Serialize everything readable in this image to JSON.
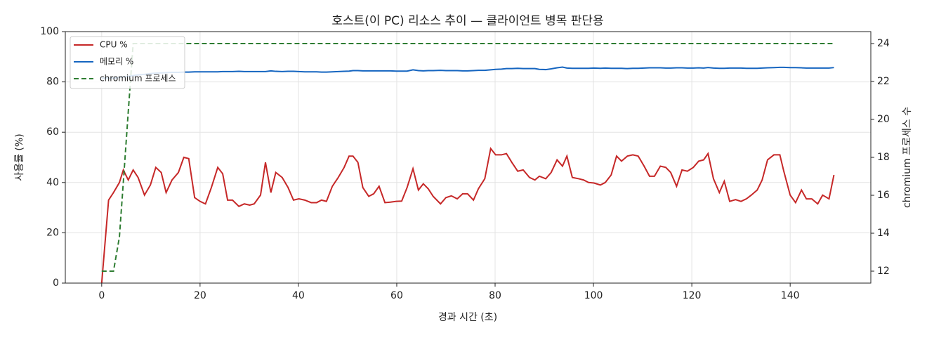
{
  "chart_data": {
    "type": "line",
    "title": "호스트(이 PC) 리소스 추이 — 클라이언트 병목 판단용",
    "x_label": "경과 시간 (초)",
    "y_label": "사용률 (%)",
    "y2_label": "chromium 프로세스 수",
    "x": [
      0,
      1.4,
      2.4,
      3.6,
      4.4,
      5.4,
      6.4,
      7.4,
      8.7,
      9.9,
      11,
      12.1,
      13.1,
      14.3,
      15.6,
      16.7,
      17.7,
      18.9,
      20,
      21.1,
      22.3,
      23.6,
      24.6,
      25.6,
      26.6,
      27.9,
      29,
      30.1,
      31,
      32.3,
      33.3,
      34.4,
      35.4,
      36.7,
      37.9,
      39,
      40.1,
      41.3,
      42.6,
      43.7,
      44.7,
      45.7,
      46.9,
      48.1,
      49.3,
      50.3,
      51.1,
      52.1,
      53.1,
      54.3,
      55.3,
      56.4,
      57.6,
      58.7,
      59.9,
      61,
      62.1,
      63.3,
      64.4,
      65.4,
      66.4,
      67.4,
      68.9,
      70,
      71.1,
      72.3,
      73.4,
      74.4,
      75.6,
      76.6,
      77.9,
      79.1,
      80.1,
      81.3,
      82.3,
      83.4,
      84.6,
      85.7,
      87,
      88.1,
      89,
      90.3,
      91.4,
      92.6,
      93.7,
      94.6,
      95.7,
      97,
      98,
      99,
      100.1,
      101.4,
      102.4,
      103.6,
      104.7,
      105.7,
      106.9,
      108,
      109.1,
      110.3,
      111.4,
      112.4,
      113.6,
      114.7,
      115.7,
      116.9,
      118,
      119.1,
      120.3,
      121.4,
      122.4,
      123.3,
      124.4,
      125.6,
      126.6,
      127.7,
      128.9,
      130,
      131.1,
      132.1,
      133.3,
      134.3,
      135.4,
      136.7,
      137.9,
      138.7,
      140,
      141.1,
      142.3,
      143.3,
      144.4,
      145.6,
      146.6,
      147.9,
      148.9
    ],
    "series": [
      {
        "name": "CPU %",
        "color": "#c62828",
        "linestyle": "solid",
        "values": [
          0,
          33,
          36,
          40,
          45,
          41,
          45,
          42,
          35,
          39,
          46,
          44,
          36,
          41,
          44,
          50,
          49.5,
          34,
          32.5,
          31.5,
          38,
          46,
          43.5,
          33,
          33,
          30.5,
          31.5,
          31,
          31.5,
          35,
          48,
          36,
          44,
          42,
          38,
          33,
          33.5,
          33,
          32,
          32,
          33,
          32.5,
          38.5,
          42,
          46,
          50.5,
          50.5,
          48,
          38,
          34.5,
          35.5,
          38.5,
          32,
          32.2,
          32.5,
          32.6,
          38,
          45.5,
          37,
          39.5,
          37.5,
          34.5,
          31.5,
          34,
          34.7,
          33.5,
          35.5,
          35.5,
          33,
          37.5,
          41.5,
          53.5,
          51,
          51,
          51.5,
          48,
          44.5,
          45,
          42,
          41,
          42.5,
          41.5,
          44,
          49,
          46.5,
          50.5,
          42,
          41.5,
          41,
          40,
          39.8,
          39,
          40,
          43,
          50.5,
          48.5,
          50.5,
          51,
          50.5,
          46.5,
          42.5,
          42.5,
          46.5,
          46,
          44,
          38.5,
          45,
          44.5,
          46,
          48.5,
          49,
          51.5,
          41.5,
          36,
          40.5,
          32.5,
          33.2,
          32.5,
          33.5,
          35,
          37,
          41,
          49,
          51,
          51,
          44.5,
          35,
          32,
          37,
          33.5,
          33.5,
          31.5,
          35,
          33.5,
          43
        ]
      },
      {
        "name": "메모리 %",
        "color": "#1565c0",
        "linestyle": "solid",
        "values": [
          81.5,
          81.5,
          81.5,
          81.8,
          82,
          82.2,
          82.5,
          82.8,
          83,
          83.3,
          83.5,
          83.6,
          83.7,
          83.8,
          83.8,
          83.9,
          83.9,
          84,
          84,
          84,
          84,
          84,
          84.1,
          84.1,
          84.1,
          84.2,
          84.1,
          84.1,
          84.1,
          84.1,
          84.1,
          84.4,
          84.2,
          84.1,
          84.2,
          84.2,
          84.1,
          84,
          84,
          84,
          83.9,
          83.9,
          84,
          84.1,
          84.2,
          84.3,
          84.5,
          84.5,
          84.4,
          84.4,
          84.4,
          84.4,
          84.4,
          84.4,
          84.3,
          84.3,
          84.3,
          84.8,
          84.5,
          84.4,
          84.5,
          84.5,
          84.6,
          84.5,
          84.5,
          84.5,
          84.4,
          84.4,
          84.5,
          84.6,
          84.6,
          84.8,
          85,
          85.1,
          85.3,
          85.3,
          85.4,
          85.3,
          85.3,
          85.3,
          85,
          84.9,
          85.2,
          85.6,
          85.9,
          85.5,
          85.4,
          85.4,
          85.4,
          85.4,
          85.5,
          85.4,
          85.5,
          85.4,
          85.4,
          85.4,
          85.3,
          85.4,
          85.4,
          85.5,
          85.6,
          85.6,
          85.6,
          85.5,
          85.5,
          85.6,
          85.6,
          85.5,
          85.5,
          85.6,
          85.5,
          85.7,
          85.5,
          85.4,
          85.4,
          85.5,
          85.5,
          85.5,
          85.4,
          85.4,
          85.4,
          85.5,
          85.6,
          85.7,
          85.8,
          85.8,
          85.7,
          85.7,
          85.6,
          85.5,
          85.5,
          85.5,
          85.5,
          85.5,
          85.7
        ]
      },
      {
        "name": "chromium 프로세스",
        "color": "#2e7d32",
        "linestyle": "dashed",
        "axis": "y2",
        "values": [
          12,
          12,
          12,
          13.8,
          16.7,
          20.4,
          24,
          24,
          24,
          24,
          24,
          24,
          24,
          24,
          24,
          24,
          24,
          24,
          24,
          24,
          24,
          24,
          24,
          24,
          24,
          24,
          24,
          24,
          24,
          24,
          24,
          24,
          24,
          24,
          24,
          24,
          24,
          24,
          24,
          24,
          24,
          24,
          24,
          24,
          24,
          24,
          24,
          24,
          24,
          24,
          24,
          24,
          24,
          24,
          24,
          24,
          24,
          24,
          24,
          24,
          24,
          24,
          24,
          24,
          24,
          24,
          24,
          24,
          24,
          24,
          24,
          24,
          24,
          24,
          24,
          24,
          24,
          24,
          24,
          24,
          24,
          24,
          24,
          24,
          24,
          24,
          24,
          24,
          24,
          24,
          24,
          24,
          24,
          24,
          24,
          24,
          24,
          24,
          24,
          24,
          24,
          24,
          24,
          24,
          24,
          24,
          24,
          24,
          24,
          24,
          24,
          24,
          24,
          24,
          24,
          24,
          24,
          24,
          24,
          24,
          24,
          24,
          24,
          24,
          24,
          24,
          24,
          24,
          24,
          24,
          24,
          24,
          24,
          24,
          24
        ]
      }
    ],
    "xlim": [
      -7.4,
      156.4
    ],
    "xticks": [
      0,
      20,
      40,
      60,
      80,
      100,
      120,
      140
    ],
    "ylim": [
      0,
      100
    ],
    "yticks": [
      0,
      20,
      40,
      60,
      80,
      100
    ],
    "y2lim": [
      11.37,
      24.63
    ],
    "y2ticks": [
      12,
      14,
      16,
      18,
      20,
      22,
      24
    ],
    "grid": true,
    "legend": "upper left"
  }
}
